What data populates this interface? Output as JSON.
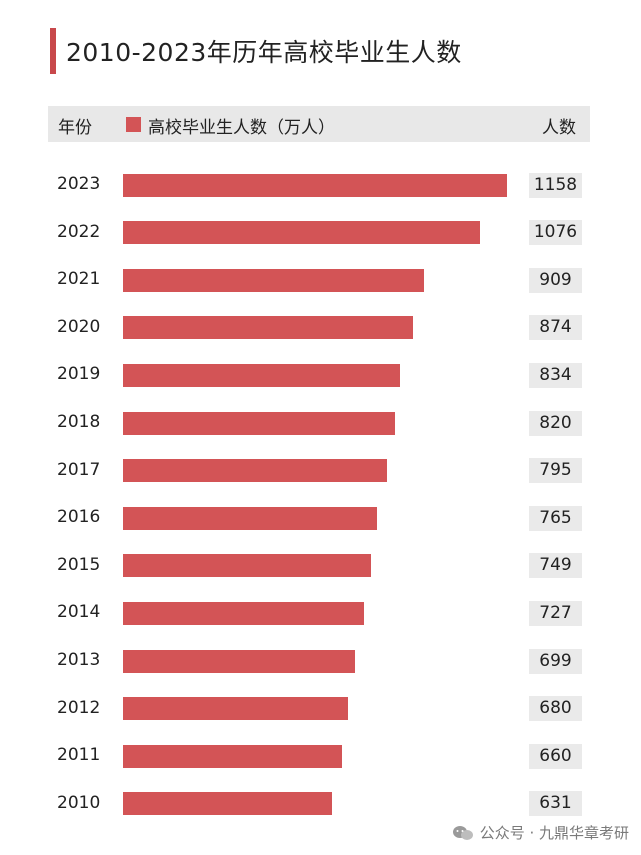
{
  "chart_data": {
    "type": "bar",
    "orientation": "horizontal",
    "title": "2010-2023年历年高校毕业生人数",
    "header": {
      "year_label": "年份",
      "series_label": "高校毕业生人数（万人）",
      "count_label": "人数"
    },
    "categories": [
      "2023",
      "2022",
      "2021",
      "2020",
      "2019",
      "2018",
      "2017",
      "2016",
      "2015",
      "2014",
      "2013",
      "2012",
      "2011",
      "2010"
    ],
    "series": [
      {
        "name": "高校毕业生人数（万人）",
        "values": [
          1158,
          1076,
          909,
          874,
          834,
          820,
          795,
          765,
          749,
          727,
          699,
          680,
          660,
          631
        ]
      }
    ],
    "value_labels": [
      "1158",
      "1076",
      "909",
      "874",
      "834",
      "820",
      "795",
      "765",
      "749",
      "727",
      "699",
      "680",
      "660",
      "631"
    ],
    "bar_color": "#d35456",
    "accent_color": "#c8484b"
  },
  "watermark": {
    "icon": "wechat-icon",
    "text": "公众号 · 九鼎华章考研"
  }
}
